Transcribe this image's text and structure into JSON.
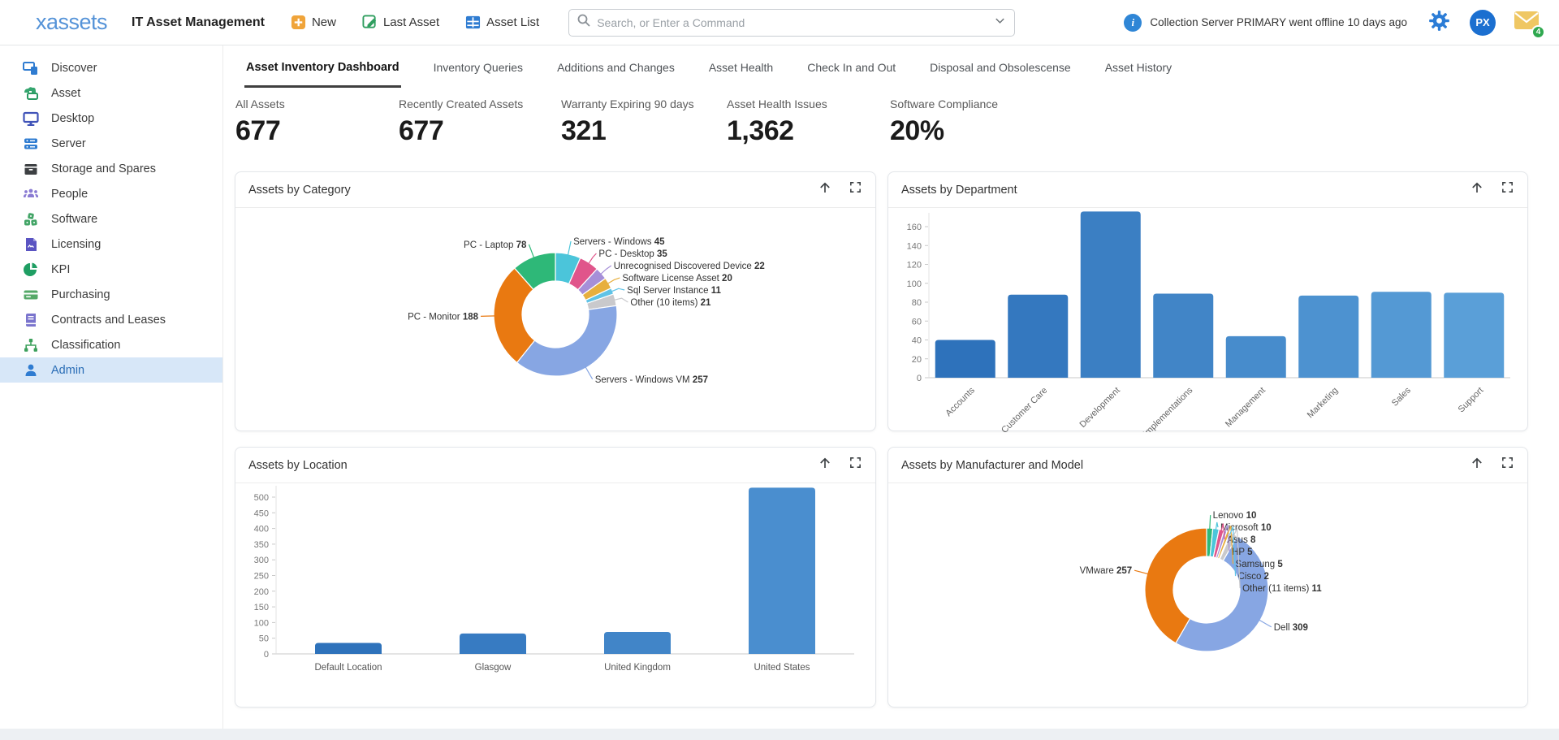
{
  "topbar": {
    "logo": "xassets",
    "app_title": "IT Asset Management",
    "actions": [
      {
        "label": "New",
        "icon": "plus-icon"
      },
      {
        "label": "Last Asset",
        "icon": "edit-icon"
      },
      {
        "label": "Asset List",
        "icon": "table-icon"
      }
    ],
    "search": {
      "placeholder": "Search, or Enter a Command"
    },
    "notification": "Collection Server PRIMARY went offline 10 days ago",
    "avatar_initials": "PX",
    "mail_badge": "4"
  },
  "sidebar": {
    "items": [
      {
        "label": "Discover"
      },
      {
        "label": "Asset"
      },
      {
        "label": "Desktop"
      },
      {
        "label": "Server"
      },
      {
        "label": "Storage and Spares"
      },
      {
        "label": "People"
      },
      {
        "label": "Software"
      },
      {
        "label": "Licensing"
      },
      {
        "label": "KPI"
      },
      {
        "label": "Purchasing"
      },
      {
        "label": "Contracts and Leases"
      },
      {
        "label": "Classification"
      },
      {
        "label": "Admin"
      }
    ],
    "active_item": "Admin"
  },
  "tabs": [
    {
      "label": "Asset Inventory Dashboard",
      "active": true
    },
    {
      "label": "Inventory Queries",
      "active": false
    },
    {
      "label": "Additions and Changes",
      "active": false
    },
    {
      "label": "Asset Health",
      "active": false
    },
    {
      "label": "Check In and Out",
      "active": false
    },
    {
      "label": "Disposal and Obsolescense",
      "active": false
    },
    {
      "label": "Asset History",
      "active": false
    }
  ],
  "kpis": [
    {
      "label": "All Assets",
      "value": "677"
    },
    {
      "label": "Recently Created Assets",
      "value": "677"
    },
    {
      "label": "Warranty Expiring 90 days",
      "value": "321"
    },
    {
      "label": "Asset Health Issues",
      "value": "1,362"
    },
    {
      "label": "Software Compliance",
      "value": "20%"
    }
  ],
  "chart_data": [
    {
      "type": "pie",
      "subtype": "donut",
      "title": "Assets by Category",
      "slices": [
        {
          "label": "Servers - Windows",
          "value": 45,
          "color": "#4bc5da"
        },
        {
          "label": "PC - Desktop",
          "value": 35,
          "color": "#e0558b"
        },
        {
          "label": "Unrecognised Discovered Device",
          "value": 22,
          "color": "#a68fd8"
        },
        {
          "label": "Software License Asset",
          "value": 20,
          "color": "#e7af3e"
        },
        {
          "label": "Sql Server Instance",
          "value": 11,
          "color": "#5fc3e7"
        },
        {
          "label": "Other (10 items)",
          "value": 21,
          "color": "#c9c9cc"
        },
        {
          "label": "Servers - Windows VM",
          "value": 257,
          "color": "#87a6e3"
        },
        {
          "label": "PC - Monitor",
          "value": 188,
          "color": "#e97911"
        },
        {
          "label": "PC - Laptop",
          "value": 78,
          "color": "#2eb878"
        }
      ]
    },
    {
      "type": "bar",
      "title": "Assets by Department",
      "categories": [
        "Accounts",
        "Customer Care",
        "Development",
        "Implementations",
        "Management",
        "Marketing",
        "Sales",
        "Support"
      ],
      "values": [
        40,
        88,
        176,
        89,
        44,
        87,
        91,
        90
      ],
      "ylim": [
        0,
        160
      ],
      "tick_step": 20,
      "rotated_labels": true,
      "bar_color_start": "#2e72bb",
      "bar_color_end": "#5a9fd8"
    },
    {
      "type": "bar",
      "title": "Assets by Location",
      "categories": [
        "Default Location",
        "Glasgow",
        "United Kingdom",
        "United States"
      ],
      "values": [
        35,
        65,
        70,
        530
      ],
      "ylim": [
        0,
        500
      ],
      "tick_step": 50,
      "rotated_labels": false,
      "bar_color_start": "#2e72bb",
      "bar_color_end": "#4a8ecf"
    },
    {
      "type": "pie",
      "subtype": "donut",
      "title": "Assets by Manufacturer and Model",
      "slices": [
        {
          "label": "Lenovo",
          "value": 10,
          "color": "#2eb878"
        },
        {
          "label": "Microsoft",
          "value": 10,
          "color": "#4bc5da"
        },
        {
          "label": "Asus",
          "value": 8,
          "color": "#e0558b"
        },
        {
          "label": "HP",
          "value": 5,
          "color": "#a68fd8"
        },
        {
          "label": "Samsung",
          "value": 5,
          "color": "#e7af3e"
        },
        {
          "label": "Cisco",
          "value": 2,
          "color": "#5fc3e7"
        },
        {
          "label": "Other (11 items)",
          "value": 11,
          "color": "#c9c9cc"
        },
        {
          "label": "Dell",
          "value": 309,
          "color": "#87a6e3"
        },
        {
          "label": "VMware",
          "value": 257,
          "color": "#e97911"
        }
      ]
    }
  ]
}
